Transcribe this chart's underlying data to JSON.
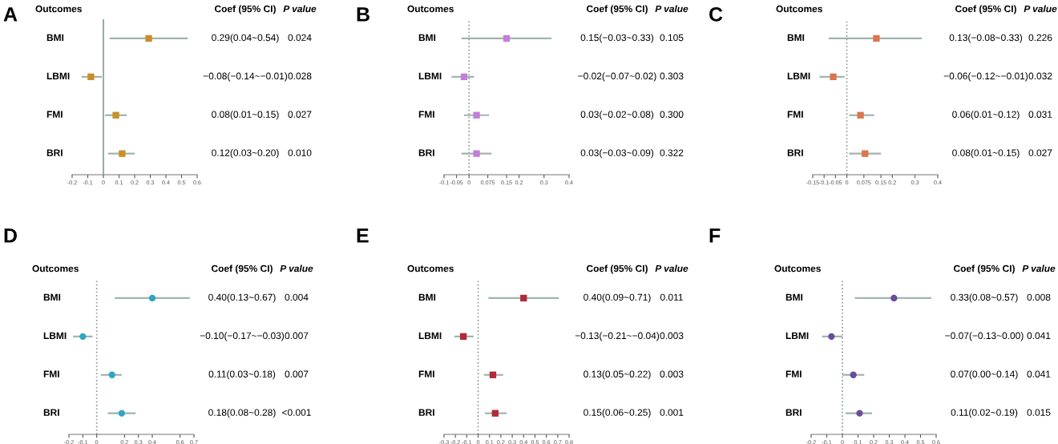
{
  "chart_data": [
    {
      "type": "scatter",
      "orientation": "horizontal",
      "title": "A",
      "categories": [
        "BMI",
        "LBMI",
        "FMI",
        "BRI"
      ],
      "values": [
        0.29,
        -0.08,
        0.08,
        0.12
      ],
      "errors": [
        [
          0.04,
          0.54
        ],
        [
          -0.14,
          -0.01
        ],
        [
          0.01,
          0.15
        ],
        [
          0.03,
          0.2
        ]
      ],
      "color": "#c8902a",
      "marker": "square",
      "xlim": [
        -0.2,
        0.6
      ],
      "xticks": [
        -0.2,
        -0.1,
        0,
        0.1,
        0.2,
        0.3,
        0.4,
        0.5,
        0.6
      ],
      "ref_lines": [
        {
          "axis": "x",
          "value": 0,
          "color": "#8a9a94",
          "line_style": "solid"
        }
      ],
      "annotations": [
        "Outcomes",
        "Coef (95% CI)",
        "P value",
        "0.29(0.04~0.54)",
        "0.024",
        "−0.08(−0.14~−0.01)",
        "0.028",
        "0.08(0.01~0.15)",
        "0.027",
        "0.12(0.03~0.20)",
        "0.010"
      ]
    },
    {
      "type": "scatter",
      "orientation": "horizontal",
      "title": "B",
      "categories": [
        "BMI",
        "LBMI",
        "FMI",
        "BRI"
      ],
      "values": [
        0.15,
        -0.02,
        0.03,
        0.03
      ],
      "errors": [
        [
          -0.03,
          0.33
        ],
        [
          -0.07,
          0.02
        ],
        [
          -0.02,
          0.08
        ],
        [
          -0.03,
          0.09
        ]
      ],
      "color": "#c27fd8",
      "marker": "square",
      "xlim": [
        -0.1,
        0.4
      ],
      "xticks": [
        -0.1,
        -0.05,
        0,
        0.075,
        0.15,
        0.2,
        0.3,
        0.4
      ],
      "ref_lines": [
        {
          "axis": "x",
          "value": 0,
          "color": "#8a9a94",
          "line_style": "dotted"
        }
      ],
      "annotations": [
        "Outcomes",
        "Coef (95% CI)",
        "P value",
        "0.15(−0.03~0.33)",
        "0.105",
        "−0.02(−0.07~0.02)",
        "0.303",
        "0.03(−0.02~0.08)",
        "0.300",
        "0.03(−0.03~0.09)",
        "0.322"
      ]
    },
    {
      "type": "scatter",
      "orientation": "horizontal",
      "title": "C",
      "categories": [
        "BMI",
        "LBMI",
        "FMI",
        "BRI"
      ],
      "values": [
        0.13,
        -0.06,
        0.06,
        0.08
      ],
      "errors": [
        [
          -0.08,
          0.33
        ],
        [
          -0.12,
          -0.01
        ],
        [
          0.01,
          0.12
        ],
        [
          0.01,
          0.15
        ]
      ],
      "color": "#d9774f",
      "marker": "square",
      "xlim": [
        -0.15,
        0.4
      ],
      "xticks": [
        -0.15,
        -0.1,
        -0.05,
        0,
        0.075,
        0.15,
        0.2,
        0.3,
        0.4
      ],
      "ref_lines": [
        {
          "axis": "x",
          "value": 0,
          "color": "#8a9a94",
          "line_style": "dotted"
        }
      ],
      "annotations": [
        "Outcomes",
        "Coef (95% CI)",
        "P value",
        "0.13(−0.08~0.33)",
        "0.226",
        "−0.06(−0.12~−0.01)",
        "0.032",
        "0.06(0.01~0.12)",
        "0.031",
        "0.08(0.01~0.15)",
        "0.027"
      ]
    },
    {
      "type": "scatter",
      "orientation": "horizontal",
      "title": "D",
      "categories": [
        "BMI",
        "LBMI",
        "FMI",
        "BRI"
      ],
      "values": [
        0.4,
        -0.1,
        0.11,
        0.18
      ],
      "errors": [
        [
          0.13,
          0.67
        ],
        [
          -0.17,
          -0.03
        ],
        [
          0.03,
          0.18
        ],
        [
          0.08,
          0.28
        ]
      ],
      "color": "#2fa6c3",
      "marker": "circle",
      "xlim": [
        -0.2,
        0.7
      ],
      "xticks": [
        -0.2,
        -0.1,
        0,
        0.2,
        0.3,
        0.4,
        0.6,
        0.7
      ],
      "ref_lines": [
        {
          "axis": "x",
          "value": 0,
          "color": "#8a9a94",
          "line_style": "dotted"
        }
      ],
      "annotations": [
        "Outcomes",
        "Coef (95% CI)",
        "P value",
        "0.40(0.13~0.67)",
        "0.004",
        "−0.10(−0.17~−0.03)",
        "0.007",
        "0.11(0.03~0.18)",
        "0.007",
        "0.18(0.08~0.28)",
        "<0.001"
      ]
    },
    {
      "type": "scatter",
      "orientation": "horizontal",
      "title": "E",
      "categories": [
        "BMI",
        "LBMI",
        "FMI",
        "BRI"
      ],
      "values": [
        0.4,
        -0.13,
        0.13,
        0.15
      ],
      "errors": [
        [
          0.09,
          0.71
        ],
        [
          -0.21,
          -0.04
        ],
        [
          0.05,
          0.22
        ],
        [
          0.06,
          0.25
        ]
      ],
      "color": "#b02a37",
      "marker": "square",
      "xlim": [
        -0.3,
        0.8
      ],
      "xticks": [
        -0.3,
        -0.2,
        -0.1,
        0,
        0.1,
        0.2,
        0.3,
        0.4,
        0.5,
        0.6,
        0.7,
        0.8
      ],
      "ref_lines": [
        {
          "axis": "x",
          "value": 0,
          "color": "#8a9a94",
          "line_style": "dotted"
        }
      ],
      "annotations": [
        "Outcomes",
        "Coef (95% CI)",
        "P value",
        "0.40(0.09~0.71)",
        "0.011",
        "−0.13(−0.21~−0.04)",
        "0.003",
        "0.13(0.05~0.22)",
        "0.003",
        "0.15(0.06~0.25)",
        "0.001"
      ]
    },
    {
      "type": "scatter",
      "orientation": "horizontal",
      "title": "F",
      "categories": [
        "BMI",
        "LBMI",
        "FMI",
        "BRI"
      ],
      "values": [
        0.33,
        -0.07,
        0.07,
        0.11
      ],
      "errors": [
        [
          0.08,
          0.57
        ],
        [
          -0.13,
          0.0
        ],
        [
          0.0,
          0.14
        ],
        [
          0.02,
          0.19
        ]
      ],
      "color": "#6a4c9c",
      "marker": "circle",
      "xlim": [
        -0.2,
        0.6
      ],
      "xticks": [
        -0.2,
        -0.1,
        0,
        0.1,
        0.2,
        0.3,
        0.4,
        0.5,
        0.6
      ],
      "ref_lines": [
        {
          "axis": "x",
          "value": 0,
          "color": "#8a9a94",
          "line_style": "dotted"
        }
      ],
      "annotations": [
        "Outcomes",
        "Coef (95% CI)",
        "P value",
        "0.33(0.08~0.57)",
        "0.008",
        "−0.07(−0.13~0.00)",
        "0.041",
        "0.07(0.00~0.14)",
        "0.041",
        "0.11(0.02~0.19)",
        "0.015"
      ]
    }
  ]
}
